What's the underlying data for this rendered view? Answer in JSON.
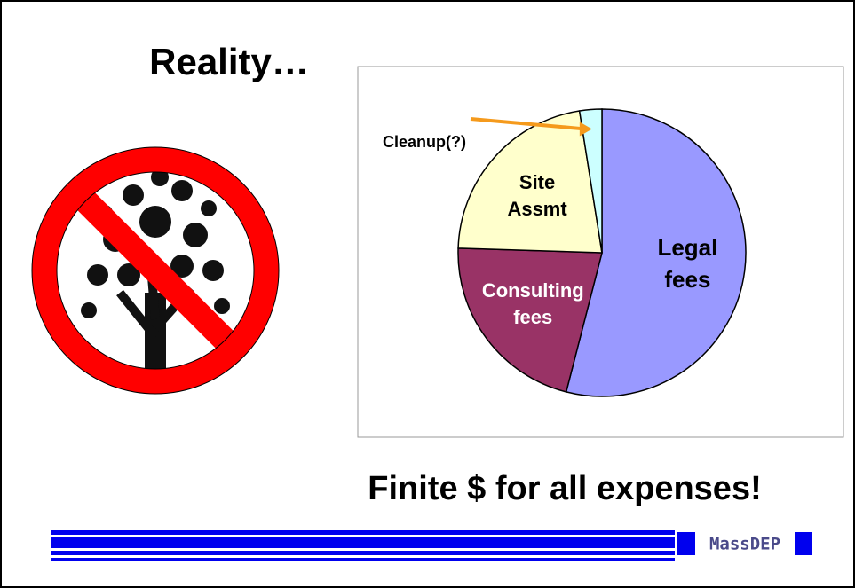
{
  "slide": {
    "title": "Reality…",
    "caption": "Finite $ for all expenses!",
    "logo": "MassDEP"
  },
  "chart_data": {
    "type": "pie",
    "categories": [
      "Legal fees",
      "Consulting fees",
      "Site Assmt",
      "Cleanup(?)"
    ],
    "values": [
      54,
      21.5,
      22,
      2.5
    ],
    "colors": [
      "#9999ff",
      "#993366",
      "#ffffcc",
      "#ccffff"
    ],
    "label_colors": [
      "#000000",
      "#ffffff",
      "#000000",
      "#000000"
    ]
  }
}
